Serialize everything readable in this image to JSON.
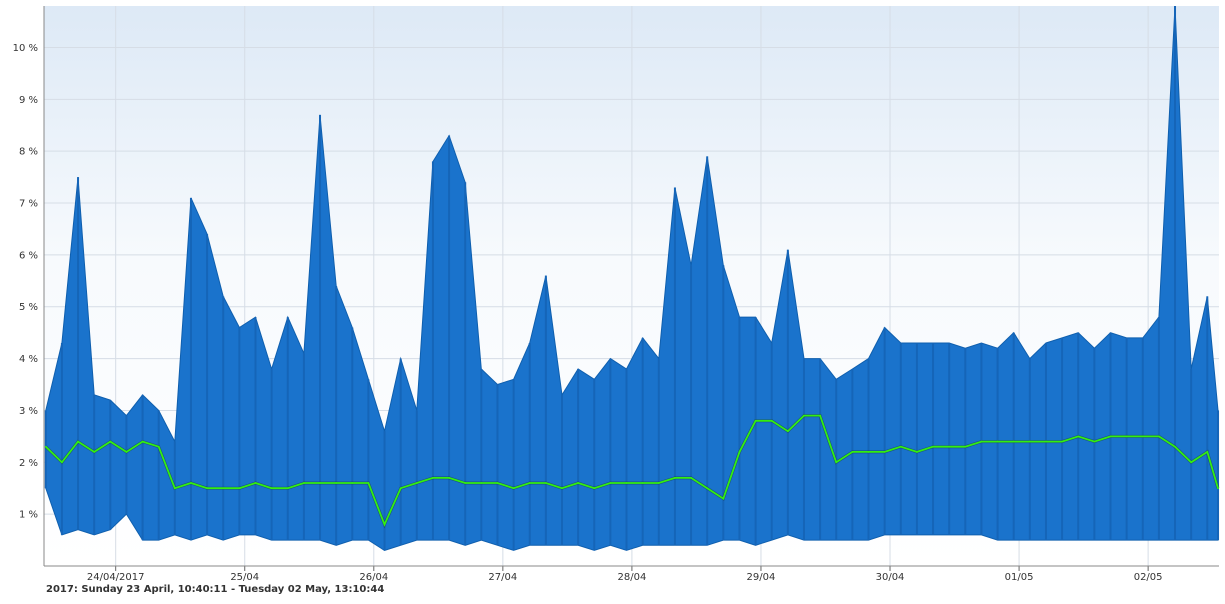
{
  "chart_data": {
    "type": "area",
    "title": "",
    "xlabel": "",
    "ylabel": "",
    "date_range_label": "2017: Sunday 23 April, 10:40:11 - Tuesday 02 May, 13:10:44",
    "x_range": [
      "2017-04-23T10:40:11",
      "2017-05-02T13:10:44"
    ],
    "ylim": [
      0,
      10.8
    ],
    "y_ticks": [
      {
        "value": 1,
        "label": "1 %"
      },
      {
        "value": 2,
        "label": "2 %"
      },
      {
        "value": 3,
        "label": "3 %"
      },
      {
        "value": 4,
        "label": "4 %"
      },
      {
        "value": 5,
        "label": "5 %"
      },
      {
        "value": 6,
        "label": "6 %"
      },
      {
        "value": 7,
        "label": "7 %"
      },
      {
        "value": 8,
        "label": "8 %"
      },
      {
        "value": 9,
        "label": "9 %"
      },
      {
        "value": 10,
        "label": "10 %"
      }
    ],
    "x_ticks": [
      {
        "value": "2017-04-24",
        "label": "24/04/2017"
      },
      {
        "value": "2017-04-25",
        "label": "25/04"
      },
      {
        "value": "2017-04-26",
        "label": "26/04"
      },
      {
        "value": "2017-04-27",
        "label": "27/04"
      },
      {
        "value": "2017-04-28",
        "label": "28/04"
      },
      {
        "value": "2017-04-29",
        "label": "29/04"
      },
      {
        "value": "2017-04-30",
        "label": "30/04"
      },
      {
        "value": "2017-05-01",
        "label": "01/05"
      },
      {
        "value": "2017-05-02",
        "label": "02/05"
      }
    ],
    "grid": true,
    "legend": "none",
    "series": [
      {
        "kind": "band",
        "color": "#1a73cc",
        "x": [
          "2017-04-23T11:00",
          "2017-04-23T14:00",
          "2017-04-23T17:00",
          "2017-04-23T20:00",
          "2017-04-23T23:00",
          "2017-04-24T02:00",
          "2017-04-24T05:00",
          "2017-04-24T08:00",
          "2017-04-24T11:00",
          "2017-04-24T14:00",
          "2017-04-24T17:00",
          "2017-04-24T20:00",
          "2017-04-24T23:00",
          "2017-04-25T02:00",
          "2017-04-25T05:00",
          "2017-04-25T08:00",
          "2017-04-25T11:00",
          "2017-04-25T14:00",
          "2017-04-25T17:00",
          "2017-04-25T20:00",
          "2017-04-25T23:00",
          "2017-04-26T02:00",
          "2017-04-26T05:00",
          "2017-04-26T08:00",
          "2017-04-26T11:00",
          "2017-04-26T14:00",
          "2017-04-26T17:00",
          "2017-04-26T20:00",
          "2017-04-26T23:00",
          "2017-04-27T02:00",
          "2017-04-27T05:00",
          "2017-04-27T08:00",
          "2017-04-27T11:00",
          "2017-04-27T14:00",
          "2017-04-27T17:00",
          "2017-04-27T20:00",
          "2017-04-27T23:00",
          "2017-04-28T02:00",
          "2017-04-28T05:00",
          "2017-04-28T08:00",
          "2017-04-28T11:00",
          "2017-04-28T14:00",
          "2017-04-28T17:00",
          "2017-04-28T20:00",
          "2017-04-28T23:00",
          "2017-04-29T02:00",
          "2017-04-29T05:00",
          "2017-04-29T08:00",
          "2017-04-29T11:00",
          "2017-04-29T14:00",
          "2017-04-29T17:00",
          "2017-04-29T20:00",
          "2017-04-29T23:00",
          "2017-04-30T02:00",
          "2017-04-30T05:00",
          "2017-04-30T08:00",
          "2017-04-30T11:00",
          "2017-04-30T14:00",
          "2017-04-30T17:00",
          "2017-04-30T20:00",
          "2017-04-30T23:00",
          "2017-05-01T02:00",
          "2017-05-01T05:00",
          "2017-05-01T08:00",
          "2017-05-01T11:00",
          "2017-05-01T14:00",
          "2017-05-01T17:00",
          "2017-05-01T20:00",
          "2017-05-01T23:00",
          "2017-05-02T02:00",
          "2017-05-02T05:00",
          "2017-05-02T08:00",
          "2017-05-02T11:00",
          "2017-05-02T13:00"
        ],
        "max": [
          3.0,
          4.3,
          7.5,
          3.3,
          3.2,
          2.9,
          3.3,
          3.0,
          2.4,
          7.1,
          6.4,
          5.2,
          4.6,
          4.8,
          3.8,
          4.8,
          4.1,
          8.7,
          5.4,
          4.6,
          3.6,
          2.6,
          4.0,
          3.0,
          7.8,
          8.3,
          7.4,
          3.8,
          3.5,
          3.6,
          4.3,
          5.6,
          3.3,
          3.8,
          3.6,
          4.0,
          3.8,
          4.4,
          4.0,
          7.3,
          5.8,
          7.9,
          5.8,
          4.8,
          4.8,
          4.3,
          6.1,
          4.0,
          4.0,
          3.6,
          3.8,
          4.0,
          4.6,
          4.3,
          4.3,
          4.3,
          4.3,
          4.2,
          4.3,
          4.2,
          4.5,
          4.0,
          4.3,
          4.4,
          4.5,
          4.2,
          4.5,
          4.4,
          4.4,
          4.8,
          10.8,
          3.8,
          5.2,
          3.0
        ],
        "min": [
          1.5,
          0.6,
          0.7,
          0.6,
          0.7,
          1.0,
          0.5,
          0.5,
          0.6,
          0.5,
          0.6,
          0.5,
          0.6,
          0.6,
          0.5,
          0.5,
          0.5,
          0.5,
          0.4,
          0.5,
          0.5,
          0.3,
          0.4,
          0.5,
          0.5,
          0.5,
          0.4,
          0.5,
          0.4,
          0.3,
          0.4,
          0.4,
          0.4,
          0.4,
          0.3,
          0.4,
          0.3,
          0.4,
          0.4,
          0.4,
          0.4,
          0.4,
          0.5,
          0.5,
          0.4,
          0.5,
          0.6,
          0.5,
          0.5,
          0.5,
          0.5,
          0.5,
          0.6,
          0.6,
          0.6,
          0.6,
          0.6,
          0.6,
          0.6,
          0.5,
          0.5,
          0.5,
          0.5,
          0.5,
          0.5,
          0.5,
          0.5,
          0.5,
          0.5,
          0.5,
          0.5,
          0.5,
          0.5,
          0.5
        ]
      },
      {
        "kind": "line",
        "color": "#33ee11",
        "x": [
          "2017-04-23T11:00",
          "2017-04-23T14:00",
          "2017-04-23T17:00",
          "2017-04-23T20:00",
          "2017-04-23T23:00",
          "2017-04-24T02:00",
          "2017-04-24T05:00",
          "2017-04-24T08:00",
          "2017-04-24T11:00",
          "2017-04-24T14:00",
          "2017-04-24T17:00",
          "2017-04-24T20:00",
          "2017-04-24T23:00",
          "2017-04-25T02:00",
          "2017-04-25T05:00",
          "2017-04-25T08:00",
          "2017-04-25T11:00",
          "2017-04-25T14:00",
          "2017-04-25T17:00",
          "2017-04-25T20:00",
          "2017-04-25T23:00",
          "2017-04-26T02:00",
          "2017-04-26T05:00",
          "2017-04-26T08:00",
          "2017-04-26T11:00",
          "2017-04-26T14:00",
          "2017-04-26T17:00",
          "2017-04-26T20:00",
          "2017-04-26T23:00",
          "2017-04-27T02:00",
          "2017-04-27T05:00",
          "2017-04-27T08:00",
          "2017-04-27T11:00",
          "2017-04-27T14:00",
          "2017-04-27T17:00",
          "2017-04-27T20:00",
          "2017-04-27T23:00",
          "2017-04-28T02:00",
          "2017-04-28T05:00",
          "2017-04-28T08:00",
          "2017-04-28T11:00",
          "2017-04-28T14:00",
          "2017-04-28T17:00",
          "2017-04-28T20:00",
          "2017-04-28T23:00",
          "2017-04-29T02:00",
          "2017-04-29T05:00",
          "2017-04-29T08:00",
          "2017-04-29T11:00",
          "2017-04-29T14:00",
          "2017-04-29T17:00",
          "2017-04-29T20:00",
          "2017-04-29T23:00",
          "2017-04-30T02:00",
          "2017-04-30T05:00",
          "2017-04-30T08:00",
          "2017-04-30T11:00",
          "2017-04-30T14:00",
          "2017-04-30T17:00",
          "2017-04-30T20:00",
          "2017-04-30T23:00",
          "2017-05-01T02:00",
          "2017-05-01T05:00",
          "2017-05-01T08:00",
          "2017-05-01T11:00",
          "2017-05-01T14:00",
          "2017-05-01T17:00",
          "2017-05-01T20:00",
          "2017-05-01T23:00",
          "2017-05-02T02:00",
          "2017-05-02T05:00",
          "2017-05-02T08:00",
          "2017-05-02T11:00",
          "2017-05-02T13:00"
        ],
        "values": [
          2.3,
          2.0,
          2.4,
          2.2,
          2.4,
          2.2,
          2.4,
          2.3,
          1.5,
          1.6,
          1.5,
          1.5,
          1.5,
          1.6,
          1.5,
          1.5,
          1.6,
          1.6,
          1.6,
          1.6,
          1.6,
          0.8,
          1.5,
          1.6,
          1.7,
          1.7,
          1.6,
          1.6,
          1.6,
          1.5,
          1.6,
          1.6,
          1.5,
          1.6,
          1.5,
          1.6,
          1.6,
          1.6,
          1.6,
          1.7,
          1.7,
          1.5,
          1.3,
          2.2,
          2.8,
          2.8,
          2.6,
          2.9,
          2.9,
          2.0,
          2.2,
          2.2,
          2.2,
          2.3,
          2.2,
          2.3,
          2.3,
          2.3,
          2.4,
          2.4,
          2.4,
          2.4,
          2.4,
          2.4,
          2.5,
          2.4,
          2.5,
          2.5,
          2.5,
          2.5,
          2.3,
          2.0,
          2.2,
          1.5
        ]
      }
    ]
  }
}
